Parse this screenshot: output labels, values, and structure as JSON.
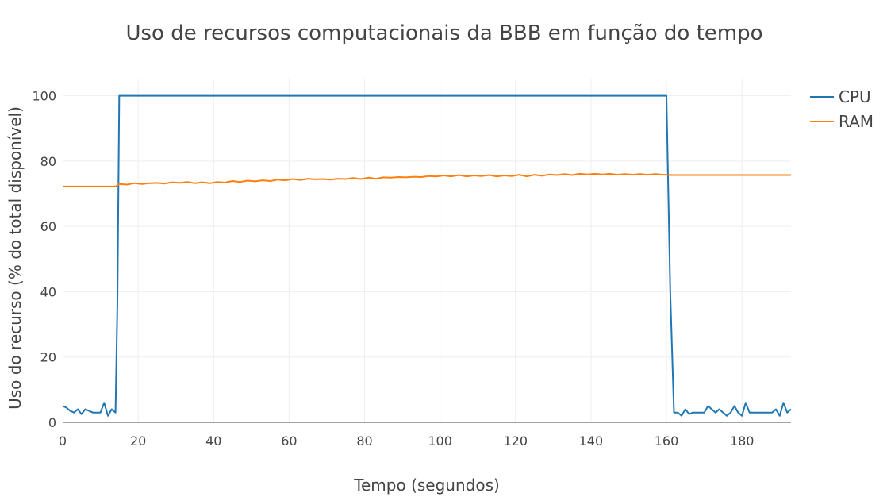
{
  "chart_data": {
    "type": "line",
    "title": "Uso de recursos computacionais da BBB em função do tempo",
    "xlabel": "Tempo (segundos)",
    "ylabel": "Uso do recurso (% do total disponível)",
    "xlim": [
      0,
      193
    ],
    "ylim": [
      0,
      105
    ],
    "x_ticks": [
      0,
      20,
      40,
      60,
      80,
      100,
      120,
      140,
      160,
      180
    ],
    "y_ticks": [
      0,
      20,
      40,
      60,
      80,
      100
    ],
    "grid": true,
    "legend_position": "top-right",
    "series": [
      {
        "name": "CPU",
        "color": "#1f77b4",
        "points": [
          [
            0,
            5
          ],
          [
            1,
            4.5
          ],
          [
            2,
            3.5
          ],
          [
            3,
            3
          ],
          [
            4,
            4
          ],
          [
            5,
            2.5
          ],
          [
            6,
            4
          ],
          [
            7,
            3.5
          ],
          [
            8,
            3
          ],
          [
            9,
            3
          ],
          [
            10,
            3
          ],
          [
            11,
            6
          ],
          [
            12,
            2
          ],
          [
            13,
            4
          ],
          [
            14,
            3
          ],
          [
            14.5,
            37
          ],
          [
            15,
            100
          ],
          [
            160,
            100
          ],
          [
            161,
            40
          ],
          [
            162,
            3
          ],
          [
            163,
            3
          ],
          [
            164,
            2
          ],
          [
            165,
            4
          ],
          [
            166,
            2.5
          ],
          [
            167,
            3
          ],
          [
            168,
            3
          ],
          [
            169,
            3
          ],
          [
            170,
            3
          ],
          [
            171,
            5
          ],
          [
            172,
            4
          ],
          [
            173,
            3
          ],
          [
            174,
            4
          ],
          [
            175,
            3
          ],
          [
            176,
            2
          ],
          [
            177,
            3
          ],
          [
            178,
            5
          ],
          [
            179,
            3
          ],
          [
            180,
            2
          ],
          [
            181,
            6
          ],
          [
            182,
            3
          ],
          [
            183,
            3
          ],
          [
            184,
            3
          ],
          [
            185,
            3
          ],
          [
            186,
            3
          ],
          [
            187,
            3
          ],
          [
            188,
            3
          ],
          [
            189,
            4
          ],
          [
            190,
            2
          ],
          [
            191,
            6
          ],
          [
            192,
            3
          ],
          [
            193,
            4
          ]
        ]
      },
      {
        "name": "RAM",
        "color": "#ff7f0e",
        "points": [
          [
            0,
            72.2
          ],
          [
            14,
            72.2
          ],
          [
            15,
            73.0
          ],
          [
            17,
            72.8
          ],
          [
            19,
            73.2
          ],
          [
            21,
            73.0
          ],
          [
            23,
            73.2
          ],
          [
            25,
            73.3
          ],
          [
            27,
            73.1
          ],
          [
            29,
            73.5
          ],
          [
            31,
            73.3
          ],
          [
            33,
            73.6
          ],
          [
            35,
            73.2
          ],
          [
            37,
            73.5
          ],
          [
            39,
            73.2
          ],
          [
            41,
            73.6
          ],
          [
            43,
            73.4
          ],
          [
            45,
            73.9
          ],
          [
            47,
            73.6
          ],
          [
            49,
            74.0
          ],
          [
            51,
            73.8
          ],
          [
            53,
            74.1
          ],
          [
            55,
            73.9
          ],
          [
            57,
            74.3
          ],
          [
            59,
            74.1
          ],
          [
            61,
            74.5
          ],
          [
            63,
            74.2
          ],
          [
            65,
            74.6
          ],
          [
            67,
            74.4
          ],
          [
            69,
            74.5
          ],
          [
            71,
            74.3
          ],
          [
            73,
            74.6
          ],
          [
            75,
            74.5
          ],
          [
            77,
            74.8
          ],
          [
            79,
            74.5
          ],
          [
            81,
            74.9
          ],
          [
            83,
            74.6
          ],
          [
            85,
            75.0
          ],
          [
            87,
            74.9
          ],
          [
            89,
            75.1
          ],
          [
            91,
            75.0
          ],
          [
            93,
            75.2
          ],
          [
            95,
            75.1
          ],
          [
            97,
            75.4
          ],
          [
            99,
            75.3
          ],
          [
            101,
            75.6
          ],
          [
            103,
            75.3
          ],
          [
            105,
            75.7
          ],
          [
            107,
            75.3
          ],
          [
            109,
            75.6
          ],
          [
            111,
            75.4
          ],
          [
            113,
            75.7
          ],
          [
            115,
            75.3
          ],
          [
            117,
            75.6
          ],
          [
            119,
            75.4
          ],
          [
            121,
            75.8
          ],
          [
            123,
            75.3
          ],
          [
            125,
            75.8
          ],
          [
            127,
            75.5
          ],
          [
            129,
            75.9
          ],
          [
            131,
            75.7
          ],
          [
            133,
            76.0
          ],
          [
            135,
            75.7
          ],
          [
            137,
            76.1
          ],
          [
            139,
            75.9
          ],
          [
            141,
            76.1
          ],
          [
            143,
            75.9
          ],
          [
            145,
            76.1
          ],
          [
            147,
            75.8
          ],
          [
            149,
            76.0
          ],
          [
            151,
            75.8
          ],
          [
            153,
            76.0
          ],
          [
            155,
            75.8
          ],
          [
            157,
            76.0
          ],
          [
            159,
            75.8
          ],
          [
            160,
            75.8
          ],
          [
            161,
            75.7
          ],
          [
            193,
            75.7
          ]
        ]
      }
    ]
  }
}
